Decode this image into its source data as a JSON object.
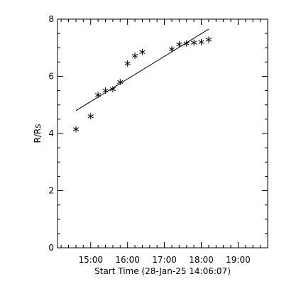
{
  "chart_data": {
    "type": "scatter",
    "title": "",
    "xlabel": "Start Time (28-Jan-25 14:06:07)",
    "ylabel": "R/Rs",
    "x_unit": "hours",
    "xlim": [
      14.1,
      19.8
    ],
    "ylim": [
      0,
      8
    ],
    "grid": false,
    "x_ticks": [
      {
        "value": 15,
        "label": "15:00"
      },
      {
        "value": 16,
        "label": "16:00"
      },
      {
        "value": 17,
        "label": "17:00"
      },
      {
        "value": 18,
        "label": "18:00"
      },
      {
        "value": 19,
        "label": "19:00"
      }
    ],
    "y_ticks": [
      {
        "value": 0,
        "label": "0"
      },
      {
        "value": 2,
        "label": "2"
      },
      {
        "value": 4,
        "label": "4"
      },
      {
        "value": 6,
        "label": "6"
      },
      {
        "value": 8,
        "label": "8"
      }
    ],
    "series": [
      {
        "marker": "asterisk",
        "points": [
          {
            "x": 14.6,
            "y": 4.15
          },
          {
            "x": 15.0,
            "y": 4.6
          },
          {
            "x": 15.2,
            "y": 5.35
          },
          {
            "x": 15.4,
            "y": 5.5
          },
          {
            "x": 15.6,
            "y": 5.55
          },
          {
            "x": 15.8,
            "y": 5.8
          },
          {
            "x": 16.0,
            "y": 6.45
          },
          {
            "x": 16.2,
            "y": 6.72
          },
          {
            "x": 16.4,
            "y": 6.85
          },
          {
            "x": 17.2,
            "y": 6.95
          },
          {
            "x": 17.4,
            "y": 7.12
          },
          {
            "x": 17.6,
            "y": 7.15
          },
          {
            "x": 17.8,
            "y": 7.18
          },
          {
            "x": 18.0,
            "y": 7.2
          },
          {
            "x": 18.2,
            "y": 7.28
          }
        ]
      }
    ],
    "fit_line": {
      "type": "linear",
      "start": {
        "x": 14.6,
        "y": 4.8
      },
      "end": {
        "x": 18.2,
        "y": 7.65
      }
    }
  }
}
